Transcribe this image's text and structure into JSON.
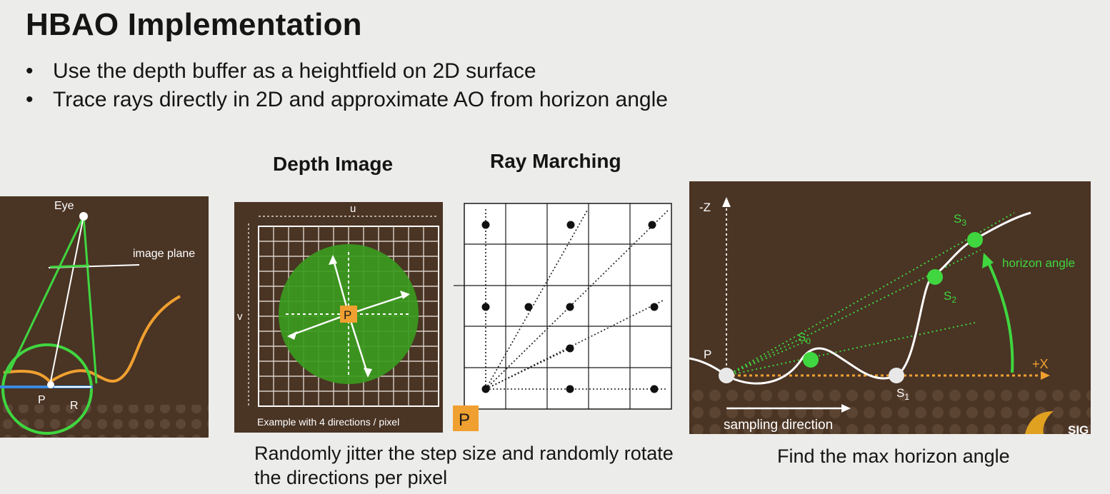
{
  "title": "HBAO Implementation",
  "bullets": [
    "Use the depth buffer as a heightfield on 2D surface",
    "Trace rays directly in 2D and approximate AO from horizon angle"
  ],
  "diagrams": {
    "eye_panel": {
      "eye_label": "Eye",
      "image_plane_label": "image plane",
      "p_label": "P",
      "r_label": "R"
    },
    "depth_image": {
      "heading": "Depth Image",
      "u_label": "u",
      "v_label": "v",
      "p_label": "P",
      "example_caption": "Example with 4 directions / pixel"
    },
    "ray_marching": {
      "heading": "Ray Marching",
      "p_label": "P"
    },
    "horizon": {
      "neg_z_label": "-Z",
      "pos_x_label": "+X",
      "p_label": "P",
      "s0_label": "S",
      "s0_sub": "0",
      "s1_label": "S",
      "s1_sub": "1",
      "s2_label": "S",
      "s2_sub": "2",
      "s3_label": "S",
      "s3_sub": "3",
      "horizon_angle_label": "horizon angle",
      "sampling_label": "sampling direction",
      "logo_text": "SIG"
    }
  },
  "captions": {
    "jitter": "Randomly jitter the step size and randomly rotate the directions per pixel",
    "max_horizon": "Find the max horizon angle"
  },
  "colors": {
    "panel_brown": "#4a3424",
    "green": "#3fd63f",
    "orange": "#f0a030",
    "blue": "#3a8ae0"
  }
}
